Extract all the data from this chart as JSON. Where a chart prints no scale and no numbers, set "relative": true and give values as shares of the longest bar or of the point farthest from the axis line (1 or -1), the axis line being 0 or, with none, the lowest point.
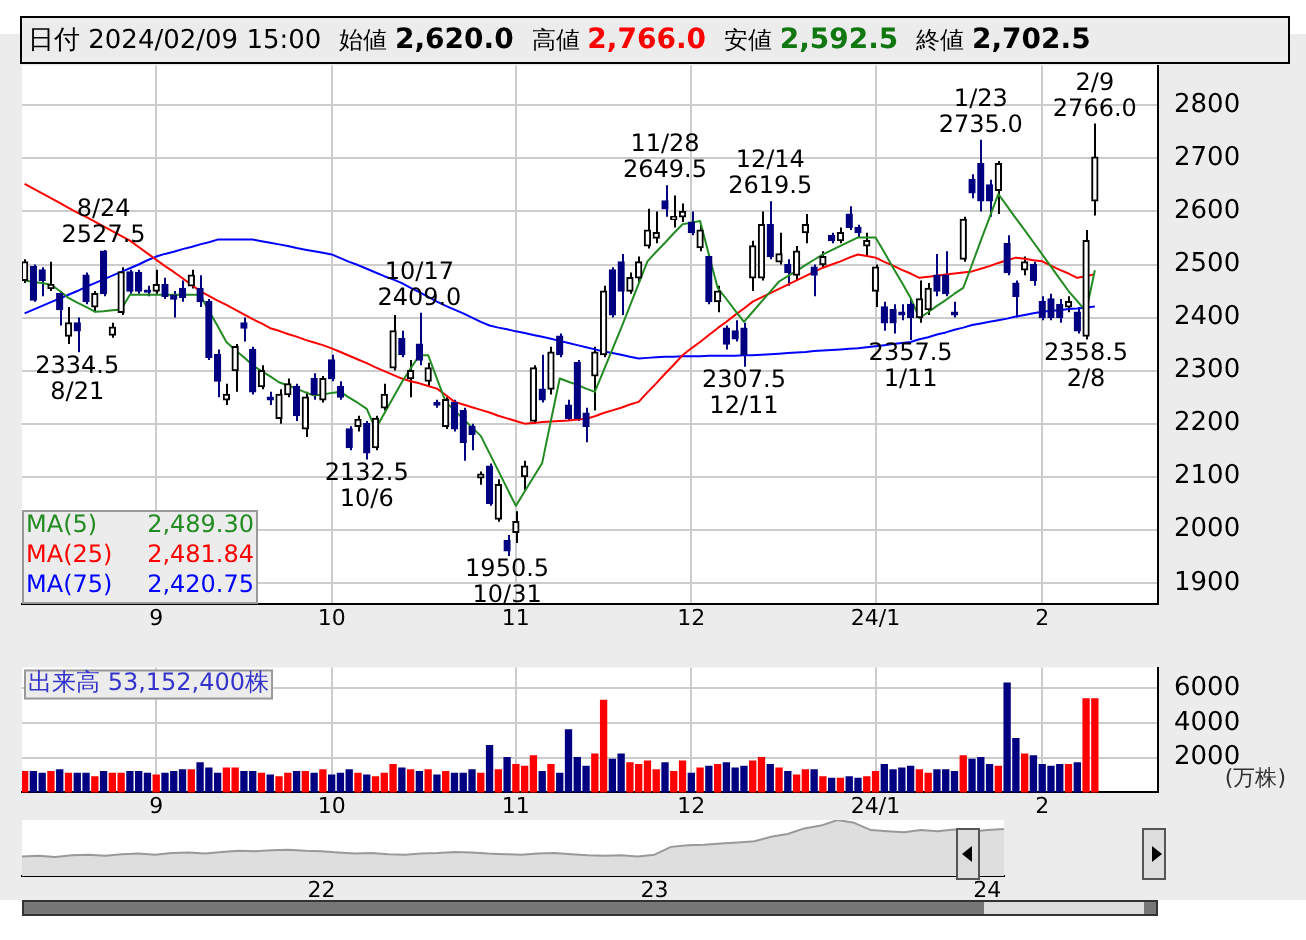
{
  "chart_data": [
    {
      "type": "candlestick",
      "colors": [
        "#000000",
        "#000080",
        "#000080",
        "#000000",
        "#000080",
        "#000000",
        "#000080",
        "#000080",
        "#000000",
        "#000080",
        "#000000",
        "#000000",
        "#000080",
        "#000080",
        "#000080",
        "#000000",
        "#000080",
        "#000080",
        "#000080",
        "#000000",
        "#000080",
        "#000080",
        "#000080",
        "#000000",
        "#000000",
        "#000080",
        "#000080",
        "#000000",
        "#000080",
        "#000000",
        "#000000",
        "#000080",
        "#000000",
        "#000080",
        "#000000",
        "#000080",
        "#000080",
        "#000080",
        "#000000",
        "#000080",
        "#000000",
        "#000000",
        "#000000",
        "#000080",
        "#000000",
        "#000080",
        "#000000",
        "#000080",
        "#000000",
        "#000080",
        "#000080",
        "#000080",
        "#000000",
        "#000080",
        "#000000",
        "#000080",
        "#000000",
        "#000000",
        "#000000",
        "#000080",
        "#000000",
        "#000080",
        "#000080",
        "#000080",
        "#000080",
        "#000000",
        "#000000",
        "#000080",
        "#000080",
        "#000000",
        "#000000",
        "#000000",
        "#000000",
        "#000080",
        "#000000",
        "#000000",
        "#000080",
        "#000000",
        "#000080",
        "#000000",
        "#000080",
        "#000080",
        "#000080",
        "#000000",
        "#000000",
        "#000080",
        "#000000",
        "#000080",
        "#000000",
        "#000000",
        "#000080",
        "#000000",
        "#000080",
        "#000000",
        "#000080",
        "#000080",
        "#000000",
        "#000000",
        "#000080",
        "#000080",
        "#000080",
        "#000080",
        "#000000",
        "#000000",
        "#000080",
        "#000080",
        "#000080",
        "#000000",
        "#000080",
        "#000080",
        "#000080",
        "#000000",
        "#000080",
        "#000080",
        "#000000",
        "#000080",
        "#000080",
        "#000080",
        "#000080",
        "#000000",
        "#000080",
        "#000000",
        "#000000"
      ],
      "grid": true,
      "ylim": [
        1860,
        2875
      ],
      "yticks": [
        1900,
        2000,
        2100,
        2200,
        2300,
        2400,
        2500,
        2600,
        2700,
        2800
      ],
      "categories": [
        null,
        null,
        null,
        null,
        null,
        null,
        null,
        null,
        null,
        null,
        null,
        null,
        null,
        null,
        null,
        "9",
        null,
        null,
        null,
        null,
        null,
        null,
        null,
        null,
        null,
        null,
        null,
        null,
        null,
        null,
        null,
        null,
        null,
        null,
        null,
        "10",
        null,
        null,
        null,
        null,
        null,
        null,
        null,
        null,
        null,
        null,
        null,
        null,
        null,
        null,
        null,
        null,
        null,
        null,
        null,
        null,
        "11",
        null,
        null,
        null,
        null,
        null,
        null,
        null,
        null,
        null,
        null,
        null,
        null,
        null,
        null,
        null,
        null,
        null,
        null,
        null,
        "12",
        null,
        null,
        null,
        null,
        null,
        null,
        null,
        null,
        null,
        null,
        null,
        null,
        null,
        null,
        null,
        null,
        null,
        null,
        null,
        null,
        "24/1",
        null,
        null,
        null,
        null,
        null,
        null,
        null,
        null,
        null,
        null,
        null,
        null,
        null,
        null,
        null,
        null,
        null,
        null,
        "2",
        null,
        null,
        null,
        null,
        null,
        null
      ],
      "ohlc": [
        [
          2470,
          2510,
          2465,
          2505
        ],
        [
          2496,
          2500,
          2430,
          2433
        ],
        [
          2490,
          2495,
          2440,
          2470
        ],
        [
          2455,
          2505,
          2450,
          2462
        ],
        [
          2445,
          2450,
          2385,
          2415
        ],
        [
          2365,
          2420,
          2350,
          2390
        ],
        [
          2390,
          2400,
          2334.5,
          2375
        ],
        [
          2480,
          2485,
          2425,
          2430
        ],
        [
          2420,
          2450,
          2410,
          2445
        ],
        [
          2525,
          2527.5,
          2440,
          2445
        ],
        [
          2367,
          2390,
          2362,
          2382
        ],
        [
          2410,
          2495,
          2405,
          2486
        ],
        [
          2486,
          2490,
          2445,
          2450
        ],
        [
          2485,
          2490,
          2445,
          2450
        ],
        [
          2450,
          2460,
          2440,
          2448
        ],
        [
          2450,
          2490,
          2445,
          2462
        ],
        [
          2462,
          2475,
          2435,
          2440
        ],
        [
          2442,
          2450,
          2400,
          2435
        ],
        [
          2455,
          2470,
          2430,
          2438
        ],
        [
          2460,
          2490,
          2455,
          2480
        ],
        [
          2455,
          2480,
          2420,
          2430
        ],
        [
          2430,
          2435,
          2320,
          2325
        ],
        [
          2330,
          2340,
          2250,
          2280
        ],
        [
          2245,
          2275,
          2235,
          2255
        ],
        [
          2300,
          2350,
          2260,
          2345
        ],
        [
          2390,
          2400,
          2355,
          2380
        ],
        [
          2340,
          2345,
          2255,
          2260
        ],
        [
          2270,
          2310,
          2265,
          2300
        ],
        [
          2250,
          2260,
          2235,
          2245
        ],
        [
          2210,
          2265,
          2200,
          2255
        ],
        [
          2255,
          2285,
          2250,
          2275
        ],
        [
          2270,
          2275,
          2205,
          2215
        ],
        [
          2190,
          2260,
          2175,
          2250
        ],
        [
          2285,
          2295,
          2245,
          2255
        ],
        [
          2245,
          2290,
          2240,
          2285
        ],
        [
          2320,
          2330,
          2280,
          2285
        ],
        [
          2270,
          2280,
          2245,
          2250
        ],
        [
          2190,
          2195,
          2150,
          2155
        ],
        [
          2195,
          2215,
          2185,
          2208
        ],
        [
          2200,
          2205,
          2132.5,
          2145
        ],
        [
          2155,
          2215,
          2150,
          2210
        ],
        [
          2230,
          2275,
          2225,
          2255
        ],
        [
          2305,
          2405,
          2300,
          2375
        ],
        [
          2360,
          2375,
          2325,
          2330
        ],
        [
          2285,
          2320,
          2250,
          2300
        ],
        [
          2350,
          2409,
          2310,
          2320
        ],
        [
          2280,
          2315,
          2270,
          2305
        ],
        [
          2240,
          2245,
          2230,
          2235
        ],
        [
          2195,
          2250,
          2190,
          2245
        ],
        [
          2240,
          2245,
          2185,
          2190
        ],
        [
          2225,
          2230,
          2130,
          2165
        ],
        [
          2195,
          2200,
          2150,
          2180
        ],
        [
          2098,
          2110,
          2085,
          2105
        ],
        [
          2120,
          2125,
          2045,
          2050
        ],
        [
          2020,
          2095,
          2015,
          2085
        ],
        [
          1980,
          1990,
          1950.5,
          1960
        ],
        [
          1995,
          2035,
          1975,
          2015
        ],
        [
          2100,
          2130,
          2075,
          2120
        ],
        [
          2205,
          2310,
          2200,
          2305
        ],
        [
          2265,
          2330,
          2240,
          2245
        ],
        [
          2265,
          2345,
          2255,
          2335
        ],
        [
          2365,
          2370,
          2325,
          2330
        ],
        [
          2235,
          2245,
          2205,
          2210
        ],
        [
          2315,
          2320,
          2205,
          2210
        ],
        [
          2220,
          2230,
          2165,
          2195
        ],
        [
          2290,
          2345,
          2225,
          2335
        ],
        [
          2330,
          2460,
          2325,
          2450
        ],
        [
          2490,
          2495,
          2400,
          2405
        ],
        [
          2505,
          2520,
          2405,
          2450
        ],
        [
          2450,
          2485,
          2445,
          2475
        ],
        [
          2475,
          2515,
          2465,
          2505
        ],
        [
          2535,
          2605,
          2530,
          2565
        ],
        [
          2550,
          2600,
          2540,
          2560
        ],
        [
          2620,
          2649.5,
          2590,
          2605
        ],
        [
          2585,
          2630,
          2570,
          2590
        ],
        [
          2590,
          2615,
          2580,
          2600
        ],
        [
          2580,
          2600,
          2555,
          2560
        ],
        [
          2532,
          2575,
          2525,
          2565
        ],
        [
          2515,
          2520,
          2425,
          2430
        ],
        [
          2430,
          2460,
          2410,
          2450
        ],
        [
          2380,
          2385,
          2340,
          2350
        ],
        [
          2375,
          2395,
          2355,
          2360
        ],
        [
          2380,
          2390,
          2307.5,
          2330
        ],
        [
          2475,
          2545,
          2450,
          2535
        ],
        [
          2475,
          2600,
          2470,
          2575
        ],
        [
          2575,
          2619.5,
          2510,
          2515
        ],
        [
          2505,
          2560,
          2500,
          2520
        ],
        [
          2500,
          2510,
          2460,
          2485
        ],
        [
          2480,
          2535,
          2470,
          2525
        ],
        [
          2560,
          2595,
          2540,
          2575
        ],
        [
          2495,
          2500,
          2440,
          2480
        ],
        [
          2500,
          2525,
          2495,
          2515
        ],
        [
          2555,
          2560,
          2540,
          2545
        ],
        [
          2545,
          2570,
          2540,
          2560
        ],
        [
          2595,
          2610,
          2565,
          2570
        ],
        [
          2570,
          2575,
          2550,
          2560
        ],
        [
          2535,
          2560,
          2515,
          2545
        ],
        [
          2450,
          2500,
          2420,
          2495
        ],
        [
          2420,
          2430,
          2375,
          2390
        ],
        [
          2415,
          2425,
          2370,
          2390
        ],
        [
          2410,
          2425,
          2395,
          2405
        ],
        [
          2425,
          2435,
          2357.5,
          2400
        ],
        [
          2400,
          2470,
          2390,
          2435
        ],
        [
          2415,
          2465,
          2405,
          2455
        ],
        [
          2480,
          2520,
          2440,
          2450
        ],
        [
          2480,
          2525,
          2440,
          2445
        ],
        [
          2410,
          2430,
          2400,
          2405
        ],
        [
          2510,
          2590,
          2505,
          2585
        ],
        [
          2660,
          2670,
          2625,
          2635
        ],
        [
          2690,
          2735,
          2600,
          2620
        ],
        [
          2650,
          2660,
          2590,
          2620
        ],
        [
          2640,
          2695,
          2595,
          2690
        ],
        [
          2540,
          2555,
          2480,
          2485
        ],
        [
          2465,
          2470,
          2400,
          2440
        ],
        [
          2490,
          2515,
          2480,
          2505
        ],
        [
          2500,
          2505,
          2460,
          2470
        ],
        [
          2430,
          2440,
          2395,
          2400
        ],
        [
          2435,
          2445,
          2395,
          2400
        ],
        [
          2425,
          2435,
          2390,
          2400
        ],
        [
          2420,
          2440,
          2410,
          2430
        ],
        [
          2410,
          2420,
          2370,
          2375
        ],
        [
          2365,
          2565,
          2358.5,
          2545
        ],
        [
          2620,
          2766,
          2592.5,
          2702.5
        ]
      ],
      "series": [
        {
          "name": "MA(5) 2,489.30",
          "type": "line",
          "color": "#228b22",
          "values": [
            2470,
            2467,
            2465,
            2462,
            2450,
            2437,
            2428,
            2420,
            2411,
            2412,
            2414,
            2415,
            2443,
            2443,
            2443,
            2443,
            2443,
            2443,
            2443,
            2443,
            2443,
            2413,
            2384,
            2354,
            2339,
            2325,
            2310,
            2299,
            2289,
            2278,
            2272,
            2266,
            2259,
            2253,
            2255,
            2258,
            2260,
            2249,
            2239,
            2228,
            2190,
            2219,
            2249,
            2278,
            2304,
            2329,
            2329,
            2285,
            2241,
            2225,
            2209,
            2193,
            2177,
            2144,
            2111,
            2078,
            2045,
            2072,
            2099,
            2126,
            2206,
            2285,
            2279,
            2273,
            2266,
            2260,
            2300,
            2340,
            2380,
            2422,
            2464,
            2506,
            2524,
            2541,
            2559,
            2576,
            2579,
            2582,
            2519,
            2456,
            2435,
            2413,
            2392,
            2411,
            2430,
            2449,
            2468,
            2478,
            2488,
            2499,
            2509,
            2519,
            2527,
            2535,
            2543,
            2551,
            2551,
            2551,
            2523,
            2494,
            2466,
            2437,
            2399,
            2410,
            2422,
            2433,
            2445,
            2456,
            2500,
            2545,
            2589,
            2633,
            2610,
            2587,
            2565,
            2542,
            2519,
            2496,
            2473,
            2450,
            2431,
            2411,
            2489.3
          ]
        },
        {
          "name": "MA(25) 2,481.84",
          "type": "line",
          "color": "#ff0000",
          "values": [
            2652,
            2643,
            2634,
            2625,
            2616,
            2607,
            2598,
            2590,
            2581,
            2572,
            2563,
            2554,
            2545,
            2533,
            2521,
            2509,
            2497,
            2486,
            2474,
            2462,
            2450,
            2441,
            2432,
            2424,
            2415,
            2406,
            2397,
            2389,
            2380,
            2375,
            2369,
            2364,
            2358,
            2353,
            2348,
            2342,
            2335,
            2328,
            2321,
            2314,
            2306,
            2299,
            2292,
            2285,
            2280,
            2276,
            2271,
            2266,
            2254,
            2241,
            2236,
            2231,
            2226,
            2221,
            2215,
            2210,
            2205,
            2200,
            2201,
            2203,
            2204,
            2205,
            2206,
            2208,
            2209,
            2214,
            2220,
            2225,
            2230,
            2236,
            2241,
            2259,
            2276,
            2294,
            2311,
            2329,
            2342,
            2354,
            2367,
            2380,
            2392,
            2405,
            2417,
            2430,
            2438,
            2446,
            2454,
            2462,
            2470,
            2478,
            2486,
            2494,
            2500,
            2506,
            2513,
            2519,
            2516,
            2513,
            2505,
            2498,
            2490,
            2483,
            2475,
            2477,
            2479,
            2481,
            2483,
            2485,
            2487,
            2492,
            2497,
            2503,
            2508,
            2513,
            2511,
            2508,
            2506,
            2498,
            2490,
            2483,
            2475,
            2478,
            2481.84
          ]
        },
        {
          "name": "MA(75) 2,420.75",
          "type": "line",
          "color": "#0000ff",
          "values": [
            2408,
            2415,
            2422,
            2429,
            2436,
            2443,
            2450,
            2458,
            2465,
            2472,
            2479,
            2486,
            2493,
            2500,
            2508,
            2515,
            2520,
            2524,
            2529,
            2533,
            2538,
            2542,
            2547,
            2547,
            2547,
            2547,
            2547,
            2544,
            2541,
            2538,
            2535,
            2531,
            2528,
            2525,
            2522,
            2519,
            2512,
            2505,
            2499,
            2492,
            2485,
            2478,
            2472,
            2465,
            2456,
            2448,
            2439,
            2430,
            2422,
            2415,
            2408,
            2400,
            2392,
            2385,
            2381,
            2378,
            2374,
            2371,
            2367,
            2364,
            2360,
            2356,
            2352,
            2348,
            2344,
            2340,
            2336,
            2333,
            2330,
            2326,
            2323,
            2324,
            2325,
            2326,
            2326,
            2327,
            2327,
            2327,
            2328,
            2328,
            2328,
            2328,
            2329,
            2329,
            2330,
            2331,
            2332,
            2333,
            2334,
            2335,
            2337,
            2338,
            2339,
            2340,
            2341,
            2342,
            2344,
            2346,
            2348,
            2350,
            2352,
            2354,
            2359,
            2363,
            2368,
            2372,
            2377,
            2381,
            2386,
            2389,
            2392,
            2395,
            2398,
            2402,
            2405,
            2408,
            2411,
            2413,
            2414,
            2416,
            2417,
            2419,
            2420.75
          ]
        }
      ],
      "annotations": [
        "日付 2024/02/09 15:00",
        "始値 2,620.0",
        "高値 2,766.0",
        "安値 2,592.5",
        "終値 2,702.5",
        {
          "text": "8/24",
          "y": 2527.5
        },
        {
          "text": "2527.5",
          "y": 2527.5
        },
        {
          "text": "2334.5",
          "y": 2334.5
        },
        {
          "text": "8/21",
          "y": 2334.5
        },
        {
          "text": "10/17",
          "y": 2409
        },
        {
          "text": "2409.0",
          "y": 2409
        },
        {
          "text": "2132.5",
          "y": 2132.5
        },
        {
          "text": "10/6",
          "y": 2132.5
        },
        {
          "text": "1950.5",
          "y": 1950.5
        },
        {
          "text": "10/31",
          "y": 1950.5
        },
        {
          "text": "11/28",
          "y": 2649.5
        },
        {
          "text": "2649.5",
          "y": 2649.5
        },
        {
          "text": "12/14",
          "y": 2619.5
        },
        {
          "text": "2619.5",
          "y": 2619.5
        },
        {
          "text": "2307.5",
          "y": 2307.5
        },
        {
          "text": "12/11",
          "y": 2307.5
        },
        {
          "text": "2357.5",
          "y": 2357.5
        },
        {
          "text": "1/11",
          "y": 2357.5
        },
        {
          "text": "1/23",
          "y": 2735
        },
        {
          "text": "2735.0",
          "y": 2735
        },
        {
          "text": "2/9",
          "y": 2766
        },
        {
          "text": "2766.0",
          "y": 2766
        },
        {
          "text": "2358.5",
          "y": 2358.5
        },
        {
          "text": "2/8",
          "y": 2358.5
        }
      ]
    },
    {
      "type": "bar",
      "grid": true,
      "ylabel": "(万株)",
      "ylim": [
        0,
        7200
      ],
      "yticks": [
        2000,
        4000,
        6000
      ],
      "annotations": [
        "出来高 53,152,400株"
      ],
      "categories": [
        null,
        null,
        null,
        null,
        null,
        null,
        null,
        null,
        null,
        null,
        null,
        null,
        null,
        null,
        null,
        "9",
        null,
        null,
        null,
        null,
        null,
        null,
        null,
        null,
        null,
        null,
        null,
        null,
        null,
        null,
        null,
        null,
        null,
        null,
        null,
        "10",
        null,
        null,
        null,
        null,
        null,
        null,
        null,
        null,
        null,
        null,
        null,
        null,
        null,
        null,
        null,
        null,
        null,
        null,
        null,
        null,
        "11",
        null,
        null,
        null,
        null,
        null,
        null,
        null,
        null,
        null,
        null,
        null,
        null,
        null,
        null,
        null,
        null,
        null,
        null,
        null,
        "12",
        null,
        null,
        null,
        null,
        null,
        null,
        null,
        null,
        null,
        null,
        null,
        null,
        null,
        null,
        null,
        null,
        null,
        null,
        null,
        null,
        "24/1",
        null,
        null,
        null,
        null,
        null,
        null,
        null,
        null,
        null,
        null,
        null,
        null,
        null,
        null,
        null,
        null,
        null,
        null,
        "2",
        null,
        null,
        null,
        null,
        null,
        null
      ],
      "values": [
        1200,
        1200,
        1100,
        1200,
        1300,
        1100,
        1100,
        1100,
        900,
        1200,
        1100,
        1100,
        1200,
        1200,
        1100,
        1000,
        1100,
        1200,
        1300,
        1300,
        1700,
        1400,
        1100,
        1400,
        1400,
        1200,
        1200,
        1100,
        1000,
        900,
        1100,
        1200,
        1200,
        1100,
        1300,
        1000,
        1100,
        1300,
        1100,
        1000,
        900,
        1100,
        1600,
        1400,
        1300,
        1200,
        1300,
        1000,
        1200,
        1100,
        1100,
        1300,
        1100,
        2700,
        1300,
        2000,
        1600,
        1500,
        2100,
        1200,
        1600,
        1100,
        3600,
        2000,
        1500,
        2200,
        5300,
        1900,
        2200,
        1700,
        1600,
        1800,
        1300,
        1700,
        1200,
        1800,
        1100,
        1400,
        1500,
        1600,
        1700,
        1400,
        1500,
        1800,
        2000,
        1600,
        1400,
        1200,
        1000,
        1300,
        1300,
        900,
        800,
        800,
        900,
        800,
        900,
        1200,
        1600,
        1300,
        1400,
        1500,
        1300,
        1100,
        1300,
        1300,
        1200,
        2100,
        1900,
        2000,
        1600,
        1500,
        6300,
        3100,
        2200,
        2100,
        1600,
        1500,
        1600,
        1600,
        1700,
        5400,
        5400
      ],
      "colors": [
        "#ff0000",
        "#000080",
        "#000080",
        "#ff0000",
        "#000080",
        "#ff0000",
        "#000080",
        "#000080",
        "#ff0000",
        "#000080",
        "#ff0000",
        "#ff0000",
        "#000080",
        "#000080",
        "#000080",
        "#ff0000",
        "#000080",
        "#000080",
        "#000080",
        "#ff0000",
        "#000080",
        "#000080",
        "#000080",
        "#ff0000",
        "#ff0000",
        "#000080",
        "#000080",
        "#ff0000",
        "#000080",
        "#ff0000",
        "#ff0000",
        "#000080",
        "#ff0000",
        "#000080",
        "#ff0000",
        "#000080",
        "#000080",
        "#000080",
        "#ff0000",
        "#000080",
        "#ff0000",
        "#ff0000",
        "#ff0000",
        "#000080",
        "#ff0000",
        "#000080",
        "#ff0000",
        "#000080",
        "#ff0000",
        "#000080",
        "#000080",
        "#000080",
        "#ff0000",
        "#000080",
        "#ff0000",
        "#000080",
        "#ff0000",
        "#ff0000",
        "#ff0000",
        "#000080",
        "#ff0000",
        "#000080",
        "#000080",
        "#000080",
        "#000080",
        "#ff0000",
        "#ff0000",
        "#000080",
        "#000080",
        "#ff0000",
        "#ff0000",
        "#ff0000",
        "#ff0000",
        "#000080",
        "#ff0000",
        "#ff0000",
        "#000080",
        "#ff0000",
        "#000080",
        "#ff0000",
        "#000080",
        "#000080",
        "#000080",
        "#ff0000",
        "#ff0000",
        "#000080",
        "#ff0000",
        "#000080",
        "#ff0000",
        "#ff0000",
        "#000080",
        "#ff0000",
        "#000080",
        "#ff0000",
        "#000080",
        "#000080",
        "#ff0000",
        "#ff0000",
        "#000080",
        "#000080",
        "#000080",
        "#000080",
        "#ff0000",
        "#ff0000",
        "#000080",
        "#000080",
        "#000080",
        "#ff0000",
        "#000080",
        "#000080",
        "#000080",
        "#ff0000",
        "#000080",
        "#000080",
        "#ff0000",
        "#000080",
        "#000080",
        "#000080",
        "#000080",
        "#ff0000",
        "#000080",
        "#ff0000",
        "#ff0000"
      ]
    },
    {
      "type": "area",
      "relative": true,
      "tick_labels": "x",
      "color": "#999999",
      "categories": [
        null,
        null,
        null,
        null,
        null,
        null,
        null,
        null,
        null,
        null,
        null,
        null,
        null,
        null,
        null,
        null,
        null,
        null,
        "22",
        null,
        null,
        null,
        null,
        null,
        null,
        null,
        null,
        null,
        null,
        null,
        null,
        null,
        null,
        null,
        null,
        null,
        null,
        null,
        "23",
        null,
        null,
        null,
        null,
        null,
        null,
        null,
        null,
        null,
        null,
        null,
        null,
        null,
        null,
        null,
        null,
        null,
        null,
        null,
        "24",
        null
      ],
      "values": [
        0.35,
        0.36,
        0.34,
        0.37,
        0.38,
        0.36,
        0.39,
        0.4,
        0.38,
        0.41,
        0.42,
        0.4,
        0.43,
        0.45,
        0.44,
        0.46,
        0.47,
        0.45,
        0.44,
        0.42,
        0.4,
        0.41,
        0.39,
        0.38,
        0.4,
        0.41,
        0.43,
        0.42,
        0.4,
        0.39,
        0.38,
        0.4,
        0.41,
        0.39,
        0.37,
        0.36,
        0.37,
        0.35,
        0.38,
        0.52,
        0.55,
        0.56,
        0.58,
        0.6,
        0.62,
        0.7,
        0.75,
        0.85,
        0.9,
        1.0,
        0.95,
        0.82,
        0.8,
        0.78,
        0.82,
        0.8,
        0.83,
        0.79,
        0.82,
        0.84
      ]
    }
  ]
}
